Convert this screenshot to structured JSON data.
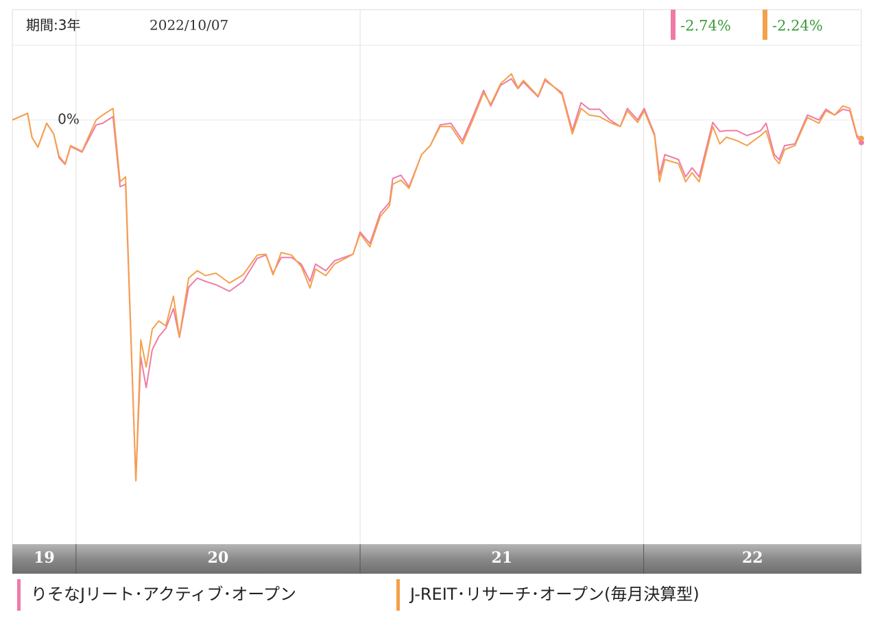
{
  "chart_data": {
    "type": "line",
    "period_label": "期間:3年",
    "date_label": "2022/10/07",
    "xlim": [
      0,
      156
    ],
    "xticks": [
      11.7,
      63.9,
      116
    ],
    "year_labels": [
      "19",
      "20",
      "21",
      "22"
    ],
    "ylim": [
      -51.5,
      13.4
    ],
    "yticks": [
      {
        "value": 0,
        "label": "0%"
      }
    ],
    "x": [
      0,
      2.8,
      3.6,
      4.7,
      6.3,
      7.6,
      8.6,
      9.7,
      10.7,
      12.8,
      15.4,
      16.6,
      18.5,
      19.8,
      20.8,
      22.7,
      23.6,
      24.6,
      25.7,
      26.9,
      28.2,
      29.6,
      30.7,
      32.4,
      34.0,
      35.5,
      37.4,
      39.9,
      42.4,
      45.0,
      46.6,
      47.9,
      49.4,
      51.3,
      53.1,
      54.7,
      55.7,
      57.6,
      59.2,
      62.6,
      63.9,
      65.7,
      67.6,
      69.3,
      69.9,
      71.4,
      72.9,
      75.2,
      76.8,
      78.6,
      80.6,
      82.7,
      84.6,
      86.6,
      87.9,
      89.7,
      91.7,
      92.9,
      93.9,
      96.6,
      97.9,
      101.0,
      102.9,
      104.5,
      106.0,
      107.9,
      109.8,
      111.7,
      113.0,
      114.9,
      116.1,
      118.0,
      118.9,
      119.9,
      122.4,
      123.7,
      124.9,
      126.2,
      128.7,
      130.0,
      131.2,
      133.1,
      135.0,
      137.5,
      138.5,
      140.0,
      140.9,
      141.9,
      143.8,
      146.1,
      148.2,
      149.5,
      151.1,
      152.6,
      153.9,
      155.2,
      156
    ],
    "series": [
      {
        "name": "りそなJリート･アクティブ･オープン",
        "color": "#f07aa8",
        "last_label": "-2.74%",
        "values": [
          0,
          0.8,
          -2.1,
          -3.3,
          -0.4,
          -1.7,
          -4.6,
          -5.4,
          -3.2,
          -3.9,
          -0.6,
          -0.4,
          0.4,
          -8.1,
          -7.8,
          -43.8,
          -28.8,
          -32.5,
          -27.9,
          -26.3,
          -25.3,
          -22.9,
          -26.4,
          -20.3,
          -19.2,
          -19.6,
          -20.0,
          -20.8,
          -19.6,
          -16.8,
          -16.4,
          -18.6,
          -16.7,
          -16.7,
          -17.5,
          -19.6,
          -17.5,
          -18.3,
          -17.1,
          -16.3,
          -13.6,
          -15.0,
          -11.3,
          -10.0,
          -7.1,
          -6.7,
          -8.1,
          -4.2,
          -3.1,
          -0.6,
          -0.4,
          -2.5,
          0.4,
          3.6,
          1.7,
          4.2,
          5.0,
          3.8,
          4.6,
          2.8,
          4.8,
          3.3,
          -1.3,
          2.1,
          1.3,
          1.3,
          0,
          -0.8,
          1.4,
          0,
          1.4,
          -1.7,
          -6.7,
          -4.2,
          -4.8,
          -6.9,
          -5.8,
          -6.9,
          -0.3,
          -1.4,
          -1.3,
          -1.3,
          -1.9,
          -1.3,
          -0.4,
          -4.2,
          -4.8,
          -3.1,
          -2.9,
          0.6,
          0,
          1.3,
          0.6,
          1.3,
          1.1,
          -2.1,
          -2.74
        ]
      },
      {
        "name": "J-REIT･リサーチ･オープン(毎月決算型)",
        "color": "#f5a04a",
        "last_label": "-2.24%",
        "values": [
          0,
          0.8,
          -2.1,
          -3.3,
          -0.4,
          -1.7,
          -4.4,
          -5.3,
          -3.1,
          -3.8,
          0,
          0.6,
          1.4,
          -7.5,
          -6.9,
          -43.8,
          -26.7,
          -30.0,
          -25.4,
          -24.4,
          -25.0,
          -21.4,
          -26.3,
          -19.2,
          -18.3,
          -18.9,
          -18.6,
          -19.8,
          -18.8,
          -16.4,
          -16.3,
          -18.8,
          -16.1,
          -16.4,
          -17.8,
          -20.4,
          -18.1,
          -18.9,
          -17.5,
          -16.3,
          -13.8,
          -15.4,
          -11.7,
          -10.4,
          -7.8,
          -7.3,
          -8.3,
          -4.2,
          -3.1,
          -0.8,
          -0.8,
          -2.9,
          0,
          3.3,
          1.9,
          4.4,
          5.6,
          3.9,
          4.8,
          2.9,
          5.0,
          3.1,
          -1.7,
          1.4,
          0.6,
          0.4,
          -0.3,
          -0.8,
          1.1,
          -0.3,
          1.1,
          -1.9,
          -7.5,
          -4.8,
          -5.3,
          -7.5,
          -6.4,
          -7.5,
          -0.8,
          -2.9,
          -2.1,
          -2.5,
          -3.1,
          -1.9,
          -1.3,
          -4.6,
          -5.3,
          -3.6,
          -3.1,
          0.3,
          -0.4,
          1.1,
          0.6,
          1.7,
          1.4,
          -1.9,
          -2.24
        ]
      }
    ],
    "grid": true
  }
}
